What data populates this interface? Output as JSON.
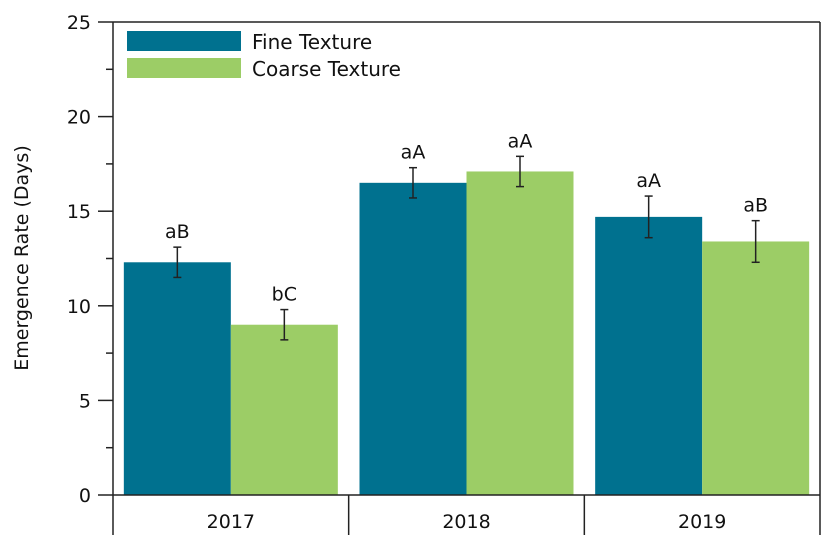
{
  "chart_data": {
    "type": "bar",
    "categories": [
      "2017",
      "2018",
      "2019"
    ],
    "series": [
      {
        "name": "Fine Texture",
        "color": "#00718f",
        "values": [
          12.3,
          16.5,
          14.7
        ],
        "errors": [
          0.8,
          0.8,
          1.1
        ],
        "labels": [
          "aB",
          "aA",
          "aA"
        ]
      },
      {
        "name": "Coarse Texture",
        "color": "#9ccd66",
        "values": [
          9.0,
          17.1,
          13.4
        ],
        "errors": [
          0.8,
          0.8,
          1.1
        ],
        "labels": [
          "bC",
          "aA",
          "aB"
        ]
      }
    ],
    "ylabel": "Emergence Rate (Days)",
    "xlabel": "",
    "ylim": [
      0,
      25
    ],
    "yticks": [
      0,
      5,
      10,
      15,
      20,
      25
    ],
    "y_minor_step": 2.5,
    "grid": false,
    "legend_position": "top-left"
  }
}
